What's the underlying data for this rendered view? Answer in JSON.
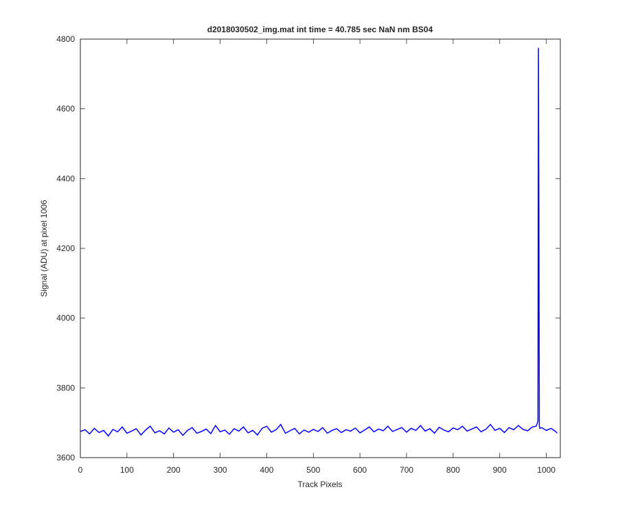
{
  "chart_data": {
    "type": "line",
    "title": "d2018030502_img.mat int time = 40.785 sec  NaN nm BS04",
    "xlabel": "Track Pixels",
    "ylabel": "Signal (ADU) at pixel 1006",
    "x": [
      0,
      10,
      20,
      30,
      40,
      50,
      60,
      70,
      80,
      90,
      100,
      110,
      120,
      130,
      140,
      150,
      160,
      170,
      180,
      190,
      200,
      210,
      220,
      230,
      240,
      250,
      260,
      270,
      280,
      290,
      300,
      310,
      320,
      330,
      340,
      350,
      360,
      370,
      380,
      390,
      400,
      410,
      420,
      430,
      440,
      450,
      460,
      470,
      480,
      490,
      500,
      510,
      520,
      530,
      540,
      550,
      560,
      570,
      580,
      590,
      600,
      610,
      620,
      630,
      640,
      650,
      660,
      670,
      680,
      690,
      700,
      710,
      720,
      730,
      740,
      750,
      760,
      770,
      780,
      790,
      800,
      810,
      820,
      830,
      840,
      850,
      860,
      870,
      880,
      890,
      900,
      910,
      920,
      930,
      940,
      950,
      960,
      970,
      978,
      981,
      982,
      983,
      984,
      985,
      986,
      990,
      1000,
      1010,
      1020,
      1023
    ],
    "series": [
      {
        "name": "signal",
        "color": "#0000ff",
        "values": [
          3675,
          3680,
          3668,
          3684,
          3672,
          3678,
          3662,
          3681,
          3674,
          3688,
          3670,
          3676,
          3683,
          3665,
          3679,
          3690,
          3671,
          3677,
          3668,
          3685,
          3673,
          3680,
          3664,
          3678,
          3686,
          3670,
          3675,
          3682,
          3669,
          3692,
          3674,
          3679,
          3667,
          3683,
          3676,
          3688,
          3671,
          3678,
          3665,
          3684,
          3690,
          3673,
          3680,
          3695,
          3670,
          3677,
          3684,
          3668,
          3679,
          3673,
          3681,
          3675,
          3686,
          3670,
          3678,
          3683,
          3672,
          3680,
          3676,
          3685,
          3671,
          3679,
          3688,
          3674,
          3682,
          3677,
          3690,
          3675,
          3681,
          3686,
          3673,
          3684,
          3678,
          3692,
          3676,
          3683,
          3670,
          3687,
          3679,
          3674,
          3685,
          3680,
          3690,
          3676,
          3682,
          3688,
          3674,
          3681,
          3695,
          3678,
          3684,
          3672,
          3686,
          3680,
          3692,
          3681,
          3677,
          3688,
          3690,
          3700,
          3705,
          4775,
          4300,
          3690,
          3684,
          3686,
          3678,
          3684,
          3675,
          3670
        ]
      }
    ],
    "xlim": [
      0,
      1030
    ],
    "xticks": [
      0,
      100,
      200,
      300,
      400,
      500,
      600,
      700,
      800,
      900,
      1000
    ],
    "ylim": [
      3600,
      4800
    ],
    "yticks": [
      3600,
      3800,
      4000,
      4200,
      4400,
      4600,
      4800
    ]
  }
}
